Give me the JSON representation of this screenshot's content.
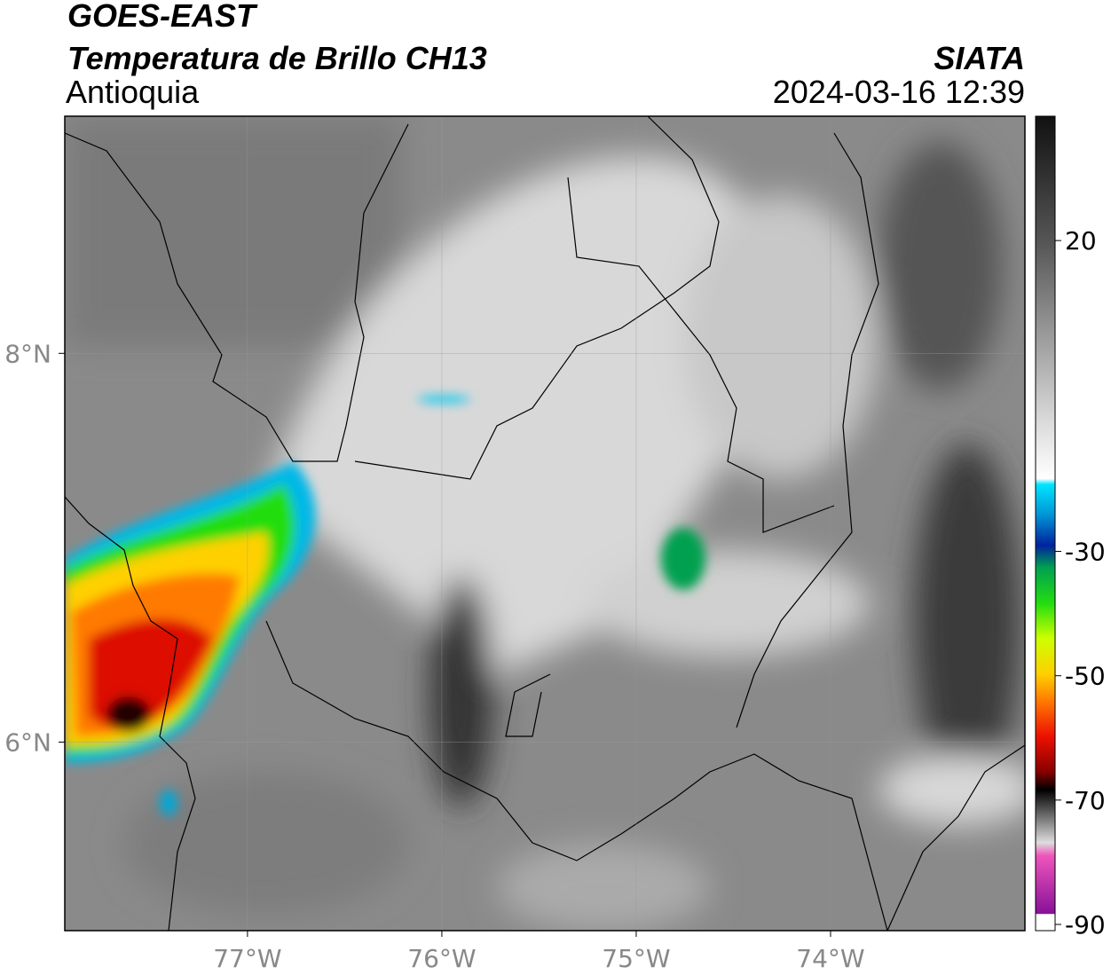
{
  "header": {
    "satellite": "GOES-EAST",
    "product": "Temperatura de Brillo CH13",
    "region": "Antioquia",
    "source": "SIATA",
    "timestamp": "2024-03-16 12:39"
  },
  "map": {
    "lon_range": [
      -77.94,
      -73.0
    ],
    "lat_range": [
      5.03,
      9.22
    ],
    "lon_ticks": [
      {
        "value": -77,
        "label": "77°W"
      },
      {
        "value": -76,
        "label": "76°W"
      },
      {
        "value": -75,
        "label": "75°W"
      },
      {
        "value": -74,
        "label": "74°W"
      }
    ],
    "lat_ticks": [
      {
        "value": 8,
        "label": "8°N"
      },
      {
        "value": 6,
        "label": "6°N"
      }
    ]
  },
  "colorbar": {
    "range": [
      -91,
      40
    ],
    "ticks": [
      20,
      -30,
      -50,
      -70,
      -90
    ]
  }
}
